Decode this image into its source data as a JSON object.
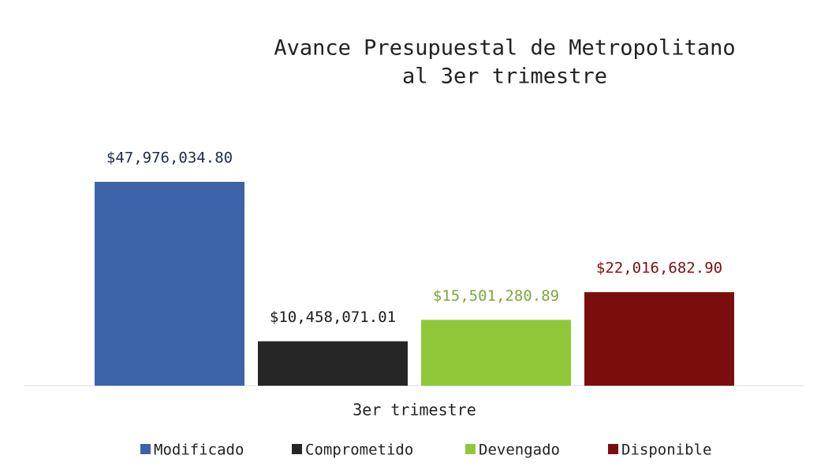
{
  "chart_data": {
    "type": "bar",
    "title": [
      "Avance Presupuestal de Metropolitano",
      "al 3er trimestre"
    ],
    "categories": [
      "3er trimestre"
    ],
    "legend": "bottom",
    "series": [
      {
        "name": "Modificado",
        "color": "#3d63a8",
        "label_color": "#1e2b4a",
        "values": [
          47976034.8
        ],
        "value_labels": [
          "$47,976,034.80"
        ]
      },
      {
        "name": "Comprometido",
        "color": "#262626",
        "label_color": "#1a1a1a",
        "values": [
          10458071.01
        ],
        "value_labels": [
          "$10,458,071.01"
        ]
      },
      {
        "name": "Devengado",
        "color": "#8fc93a",
        "label_color": "#7aa83a",
        "values": [
          15501280.89
        ],
        "value_labels": [
          "$15,501,280.89"
        ]
      },
      {
        "name": "Disponible",
        "color": "#7b0d0d",
        "label_color": "#7b1010",
        "values": [
          22016682.9
        ],
        "value_labels": [
          "$22,016,682.90"
        ]
      }
    ]
  }
}
